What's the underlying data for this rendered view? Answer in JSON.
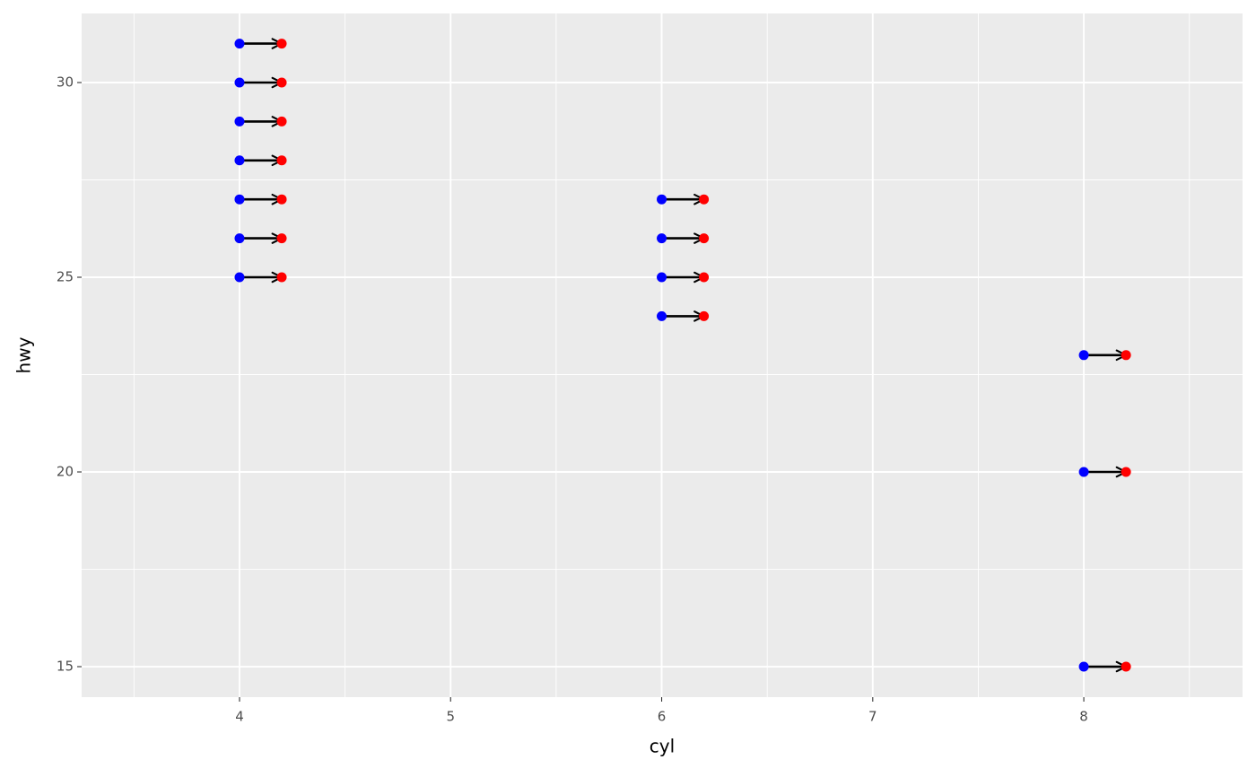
{
  "chart_data": {
    "type": "arrow",
    "x_label": "cyl",
    "y_label": "hwy",
    "xlim": [
      3.252,
      8.752
    ],
    "ylim": [
      14.217,
      31.774
    ],
    "xticks": [
      4,
      5,
      6,
      7,
      8
    ],
    "yticks": [
      15,
      20,
      25,
      30
    ],
    "grid": true,
    "arrow_color": "#000000",
    "start_color": "#0000ff",
    "end_color": "#ff0000",
    "x": [
      4,
      4,
      4,
      4,
      4,
      4,
      4,
      6,
      6,
      6,
      6,
      8,
      8,
      8
    ],
    "xend": [
      4.2,
      4.2,
      4.2,
      4.2,
      4.2,
      4.2,
      4.2,
      6.2,
      6.2,
      6.2,
      6.2,
      8.2,
      8.2,
      8.2
    ],
    "y": [
      25,
      26,
      27,
      28,
      29,
      30,
      31,
      24,
      25,
      26,
      27,
      15,
      20,
      23
    ]
  }
}
